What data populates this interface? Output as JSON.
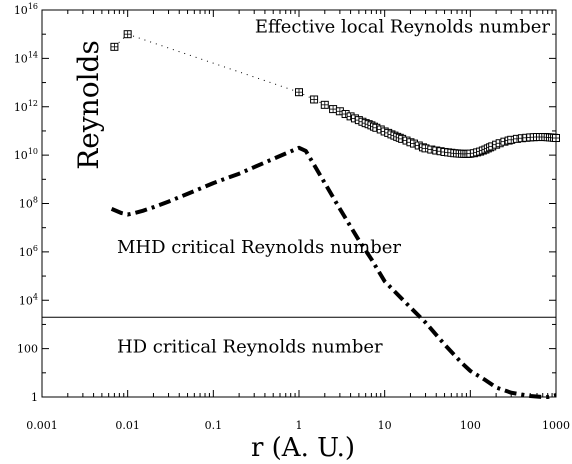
{
  "chart_data": {
    "type": "line",
    "title": "",
    "xlabel": "r (A. U.)",
    "ylabel": "Reynolds",
    "xscale": "log",
    "yscale": "log",
    "xlim": [
      0.001,
      1000
    ],
    "ylim": [
      1,
      1e+16
    ],
    "grid": false,
    "legend": "none",
    "x_ticks": [
      {
        "value": 0.001,
        "label": "0.001"
      },
      {
        "value": 0.01,
        "label": "0.01"
      },
      {
        "value": 0.1,
        "label": "0.1"
      },
      {
        "value": 1,
        "label": "1"
      },
      {
        "value": 10,
        "label": "10"
      },
      {
        "value": 100,
        "label": "100"
      },
      {
        "value": 1000,
        "label": "1000"
      }
    ],
    "y_ticks": [
      {
        "value": 1,
        "label": "1",
        "base": "",
        "exp": ""
      },
      {
        "value": 100,
        "label": "100",
        "base": "",
        "exp": ""
      },
      {
        "value": 10000,
        "label": "",
        "base": "10",
        "exp": "4"
      },
      {
        "value": 1000000,
        "label": "",
        "base": "10",
        "exp": "6"
      },
      {
        "value": 100000000,
        "label": "",
        "base": "10",
        "exp": "8"
      },
      {
        "value": 10000000000,
        "label": "",
        "base": "10",
        "exp": "10"
      },
      {
        "value": 1000000000000,
        "label": "",
        "base": "10",
        "exp": "12"
      },
      {
        "value": 100000000000000,
        "label": "",
        "base": "10",
        "exp": "14"
      },
      {
        "value": 10000000000000000,
        "label": "",
        "base": "10",
        "exp": "16"
      }
    ],
    "annotations": [
      {
        "id": "effective",
        "text": "Effective local Reynolds number",
        "x": 2,
        "y": 1200000000000000.0
      },
      {
        "id": "mhd",
        "text": "MHD critical Reynolds number",
        "x": 0.0075,
        "y": 900000.0
      },
      {
        "id": "hd",
        "text": "HD critical Reynolds number",
        "x": 0.0075,
        "y": 70
      }
    ],
    "series": [
      {
        "style": "markers-dotted",
        "color": "#000000",
        "marker": "boxed-plus",
        "x": [
          0.007,
          0.01,
          1,
          1.5,
          2,
          2.5,
          3,
          3.5,
          4,
          4.5,
          5,
          5.5,
          6,
          6.5,
          7,
          7.5,
          8,
          9,
          10,
          11,
          12,
          13,
          14,
          15,
          16,
          18,
          20,
          22,
          25,
          28,
          30,
          35,
          40,
          45,
          50,
          55,
          60,
          65,
          70,
          75,
          80,
          85,
          90,
          95,
          100,
          110,
          120,
          130,
          140,
          150,
          160,
          170,
          180,
          200,
          220,
          250,
          280,
          300,
          350,
          400,
          450,
          500,
          550,
          600,
          650,
          700,
          750,
          800,
          850,
          900,
          950,
          1000
        ],
        "y": [
          300000000000000.0,
          1000000000000000.0,
          4000000000000.0,
          2000000000000.0,
          1200000000000.0,
          800000000000.0,
          650000000000.0,
          500000000000.0,
          400000000000.0,
          330000000000.0,
          280000000000.0,
          240000000000.0,
          210000000000.0,
          190000000000.0,
          170000000000.0,
          150000000000.0,
          135000000000.0,
          115000000000.0,
          95000000000.0,
          83000000000.0,
          72000000000.0,
          64000000000.0,
          57000000000.0,
          52000000000.0,
          47000000000.0,
          40000000000.0,
          34000000000.0,
          30000000000.0,
          25000000000.0,
          21000000000.0,
          19000000000.0,
          17000000000.0,
          15500000000.0,
          14500000000.0,
          13500000000.0,
          13000000000.0,
          12500000000.0,
          12000000000.0,
          11800000000.0,
          11500000000.0,
          11400000000.0,
          11300000000.0,
          11200000000.0,
          11300000000.0,
          11500000000.0,
          12000000000.0,
          13000000000.0,
          14000000000.0,
          15500000000.0,
          17000000000.0,
          19000000000.0,
          21000000000.0,
          23000000000.0,
          27000000000.0,
          31000000000.0,
          36000000000.0,
          40000000000.0,
          43000000000.0,
          47000000000.0,
          50000000000.0,
          52000000000.0,
          54000000000.0,
          55000000000.0,
          56000000000.0,
          56000000000.0,
          56000000000.0,
          56000000000.0,
          55000000000.0,
          54000000000.0,
          53000000000.0,
          52000000000.0,
          51000000000.0
        ]
      },
      {
        "style": "dash-dot",
        "color": "#000000",
        "x": [
          0.0065,
          0.0085,
          0.01,
          0.012,
          0.015,
          0.02,
          0.03,
          0.05,
          0.1,
          0.2,
          0.5,
          1,
          1.2,
          1.5,
          2,
          3,
          5,
          7,
          10,
          20,
          30,
          50,
          80,
          100,
          150,
          200,
          300,
          500,
          700,
          800,
          1000
        ],
        "y": [
          60000000.0,
          40000000.0,
          35000000.0,
          40000000.0,
          50000000.0,
          70000000.0,
          120000000.0,
          250000000.0,
          700000000.0,
          1700000000.0,
          7000000000.0,
          20000000000.0,
          15000000000.0,
          4000000000.0,
          700000000.0,
          60000000.0,
          3000000.0,
          500000.0,
          60000.0,
          5000.0,
          1200.0,
          150,
          25,
          12,
          5,
          2.5,
          1.5,
          1.1,
          1,
          1,
          1.2
        ]
      },
      {
        "style": "solid",
        "color": "#000000",
        "x": [
          0.001,
          1000
        ],
        "y": [
          2000,
          2000
        ]
      }
    ]
  }
}
